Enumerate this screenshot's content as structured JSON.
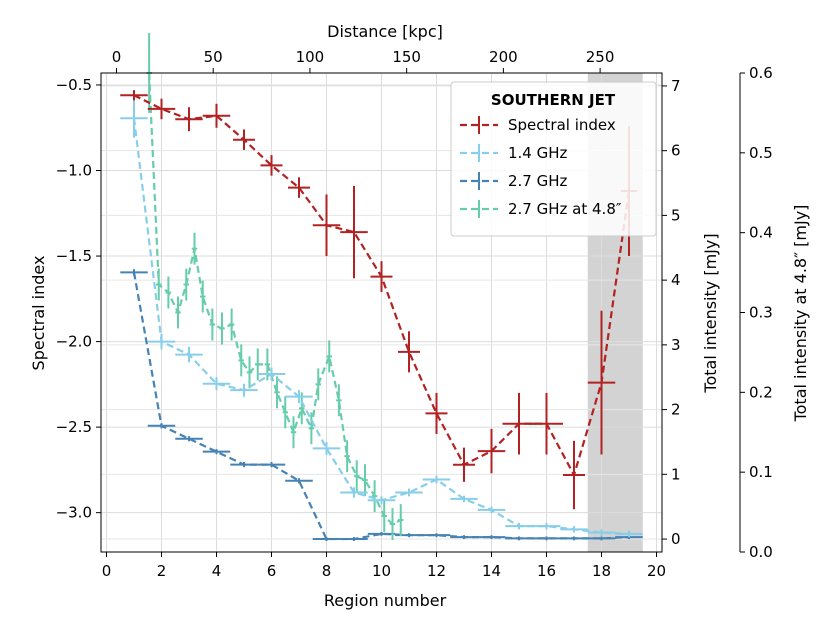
{
  "chart_data": {
    "type": "line",
    "xlabel": "Region number",
    "ylabel": "Spectral index",
    "x2label": "Distance [kpc]",
    "y2label": "Total intensity [mJy]",
    "y3label": "Total intensity at 4.8″ [mJy]",
    "xlim": [
      -0.2,
      20.2
    ],
    "ylim": [
      -3.23,
      -0.43
    ],
    "y2lim": [
      -0.2,
      7.2
    ],
    "y3lim": [
      0.0,
      0.6
    ],
    "x2lim": [
      -8,
      282
    ],
    "x_ticks": [
      0,
      2,
      4,
      6,
      8,
      10,
      12,
      14,
      16,
      18,
      20
    ],
    "y_ticks": [
      -3.0,
      -2.5,
      -2.0,
      -1.5,
      -1.0,
      -0.5
    ],
    "y_tick_labels": [
      "−3.0",
      "−2.5",
      "−2.0",
      "−1.5",
      "−1.0",
      "−0.5"
    ],
    "y2_ticks": [
      0,
      1,
      2,
      3,
      4,
      5,
      6,
      7
    ],
    "y3_ticks": [
      0.0,
      0.1,
      0.2,
      0.3,
      0.4,
      0.5,
      0.6
    ],
    "y3_tick_labels": [
      "0.0",
      "0.1",
      "0.2",
      "0.3",
      "0.4",
      "0.5",
      "0.6"
    ],
    "x2_ticks": [
      0,
      50,
      100,
      150,
      200,
      250
    ],
    "shaded_region": [
      17.5,
      19.5
    ],
    "grid": true,
    "legend": {
      "title": "SOUTHERN JET",
      "location": "top-right",
      "entries": [
        "Spectral index",
        "1.4 GHz",
        "2.7 GHz",
        "2.7 GHz at 4.8″"
      ]
    },
    "series": [
      {
        "name": "Spectral index",
        "axis": "left",
        "color": "#b22222",
        "x": [
          1,
          2,
          3,
          4,
          5,
          6,
          7,
          8,
          9,
          10,
          11,
          12,
          13,
          14,
          15,
          16,
          17,
          18,
          19
        ],
        "y": [
          -0.56,
          -0.64,
          -0.7,
          -0.68,
          -0.82,
          -0.97,
          -1.1,
          -1.32,
          -1.36,
          -1.62,
          -2.06,
          -2.42,
          -2.72,
          -2.64,
          -2.48,
          -2.48,
          -2.78,
          -2.24,
          -1.12
        ],
        "xerr": [
          0.5,
          0.5,
          0.5,
          0.5,
          0.4,
          0.4,
          0.4,
          0.5,
          0.5,
          0.4,
          0.4,
          0.4,
          0.4,
          0.5,
          0.6,
          0.6,
          0.4,
          0.5,
          0.3
        ],
        "yerr": [
          0.03,
          0.06,
          0.07,
          0.07,
          0.06,
          0.06,
          0.06,
          0.18,
          0.27,
          0.09,
          0.12,
          0.12,
          0.1,
          0.13,
          0.18,
          0.18,
          0.2,
          0.42,
          0.38
        ]
      },
      {
        "name": "1.4 GHz",
        "axis": "right",
        "color": "#87ceeb",
        "x": [
          1,
          2,
          3,
          4,
          5,
          6,
          7,
          8,
          9,
          10,
          11,
          12,
          13,
          14,
          15,
          16,
          17,
          18,
          19
        ],
        "y": [
          6.5,
          3.05,
          2.85,
          2.4,
          2.3,
          2.55,
          2.2,
          1.4,
          0.72,
          0.6,
          0.72,
          0.92,
          0.62,
          0.45,
          0.2,
          0.2,
          0.15,
          0.1,
          0.08
        ],
        "xerr": [
          0.5,
          0.5,
          0.5,
          0.5,
          0.5,
          0.5,
          0.5,
          0.5,
          0.5,
          0.5,
          0.5,
          0.5,
          0.5,
          0.5,
          0.5,
          0.5,
          0.5,
          0.5,
          0.5
        ],
        "yerr": [
          0.3,
          0.12,
          0.12,
          0.1,
          0.1,
          0.1,
          0.1,
          0.1,
          0.08,
          0.06,
          0.06,
          0.06,
          0.05,
          0.05,
          0.05,
          0.05,
          0.05,
          0.05,
          0.05
        ]
      },
      {
        "name": "2.7 GHz",
        "axis": "right",
        "color": "#4682b4",
        "x": [
          1,
          2,
          3,
          4,
          5,
          6,
          7,
          8,
          9,
          10,
          11,
          12,
          13,
          14,
          15,
          16,
          17,
          18,
          19
        ],
        "y": [
          4.12,
          1.75,
          1.55,
          1.35,
          1.15,
          1.15,
          0.9,
          0.0,
          0.0,
          0.08,
          0.06,
          0.06,
          0.03,
          0.03,
          0.01,
          0.01,
          0.01,
          0.01,
          0.03
        ],
        "xerr": [
          0.5,
          0.5,
          0.5,
          0.5,
          0.5,
          0.5,
          0.5,
          0.5,
          0.5,
          0.5,
          0.5,
          0.5,
          0.5,
          0.5,
          0.5,
          0.5,
          0.5,
          0.5,
          0.5
        ],
        "yerr": [
          0.05,
          0.04,
          0.04,
          0.04,
          0.04,
          0.04,
          0.04,
          0.03,
          0.03,
          0.03,
          0.03,
          0.03,
          0.03,
          0.03,
          0.03,
          0.03,
          0.03,
          0.03,
          0.03
        ]
      },
      {
        "name": "2.7 GHz at 4.8″",
        "axis": "far-right",
        "color": "#66cdaa",
        "x": [
          1.55,
          1.9,
          2.25,
          2.6,
          2.9,
          3.2,
          3.5,
          3.85,
          4.2,
          4.55,
          4.9,
          5.2,
          5.5,
          5.85,
          6.2,
          6.5,
          6.8,
          7.1,
          7.45,
          7.7,
          8.1,
          8.45,
          8.75,
          9.1,
          9.4,
          9.75,
          10.1,
          10.4,
          10.7
        ],
        "y": [
          0.6,
          0.335,
          0.325,
          0.3,
          0.335,
          0.38,
          0.32,
          0.285,
          0.28,
          0.285,
          0.24,
          0.225,
          0.235,
          0.235,
          0.2,
          0.175,
          0.15,
          0.18,
          0.155,
          0.21,
          0.245,
          0.19,
          0.12,
          0.095,
          0.09,
          0.07,
          0.045,
          0.035,
          0.04
        ],
        "xerr": [
          0.1,
          0.1,
          0.1,
          0.1,
          0.1,
          0.1,
          0.1,
          0.1,
          0.1,
          0.1,
          0.1,
          0.1,
          0.1,
          0.1,
          0.1,
          0.1,
          0.1,
          0.1,
          0.1,
          0.1,
          0.1,
          0.1,
          0.1,
          0.1,
          0.1,
          0.1,
          0.1,
          0.1,
          0.1
        ],
        "yerr": [
          0.05,
          0.02,
          0.02,
          0.02,
          0.02,
          0.02,
          0.02,
          0.02,
          0.02,
          0.02,
          0.02,
          0.02,
          0.02,
          0.02,
          0.02,
          0.02,
          0.02,
          0.02,
          0.02,
          0.02,
          0.02,
          0.02,
          0.02,
          0.02,
          0.02,
          0.02,
          0.02,
          0.02,
          0.02
        ]
      }
    ]
  }
}
